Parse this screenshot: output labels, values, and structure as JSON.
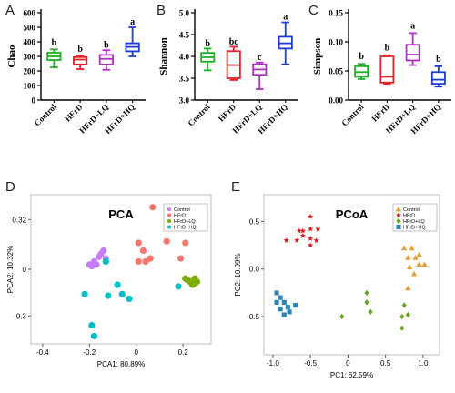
{
  "colors": {
    "control": "#1fb025",
    "hfrd": "#e8202a",
    "hfrd_lq": "#b02fc4",
    "hfrd_hq": "#1b3fd1",
    "pca_control": "#c77cff",
    "pca_hfrd": "#f8766d",
    "pca_lq": "#7cae00",
    "pca_hq": "#00bfc4",
    "pcoa_control": "#e6a032",
    "pcoa_hfrd": "#d7191c",
    "pcoa_lq": "#66a61e",
    "pcoa_hq": "#2b83ba"
  },
  "panels": {
    "A": "A",
    "B": "B",
    "C": "C",
    "D": "D",
    "E": "E"
  },
  "chart_data": [
    {
      "id": "A",
      "type": "box",
      "ylabel": "Chao",
      "categories": [
        "Control",
        "HFrD",
        "HFrD+LQ",
        "HFrD+HQ"
      ],
      "yticks": [
        "0",
        "100",
        "200",
        "300",
        "400",
        "500",
        "600"
      ],
      "ylim": [
        0,
        600
      ],
      "boxes": [
        {
          "min": 225,
          "q1": 275,
          "median": 300,
          "q3": 325,
          "max": 348
        },
        {
          "min": 212,
          "q1": 245,
          "median": 278,
          "q3": 295,
          "max": 305
        },
        {
          "min": 208,
          "q1": 245,
          "median": 283,
          "q3": 310,
          "max": 342
        },
        {
          "min": 300,
          "q1": 335,
          "median": 365,
          "q3": 390,
          "max": 500
        }
      ],
      "letters": [
        "b",
        "b",
        "b",
        "a"
      ],
      "letter_y": [
        375,
        330,
        358,
        520
      ]
    },
    {
      "id": "B",
      "type": "box",
      "ylabel": "Shannon",
      "categories": [
        "Control",
        "HFrD",
        "HFrD+LQ",
        "HFrD+HQ"
      ],
      "yticks": [
        "3.0",
        "3.5",
        "4.0",
        "4.5",
        "5.0"
      ],
      "ylim": [
        3.0,
        5.0
      ],
      "boxes": [
        {
          "min": 3.68,
          "q1": 3.88,
          "median": 3.98,
          "q3": 4.08,
          "max": 4.18
        },
        {
          "min": 3.46,
          "q1": 3.5,
          "median": 3.8,
          "q3": 4.12,
          "max": 4.22
        },
        {
          "min": 3.25,
          "q1": 3.58,
          "median": 3.7,
          "q3": 3.82,
          "max": 3.86
        },
        {
          "min": 3.82,
          "q1": 4.18,
          "median": 4.3,
          "q3": 4.45,
          "max": 4.78
        }
      ],
      "letters": [
        "b",
        "bc",
        "c",
        "a"
      ],
      "letter_y": [
        4.23,
        4.27,
        3.92,
        4.84
      ]
    },
    {
      "id": "C",
      "type": "box",
      "ylabel": "Simpson",
      "categories": [
        "Control",
        "HFrD",
        "HFrD+LQ",
        "HFrD+HQ"
      ],
      "yticks": [
        "0.00",
        "0.05",
        "0.10",
        "0.15"
      ],
      "ylim": [
        0,
        0.15
      ],
      "boxes": [
        {
          "min": 0.036,
          "q1": 0.04,
          "median": 0.048,
          "q3": 0.058,
          "max": 0.062
        },
        {
          "min": 0.028,
          "q1": 0.03,
          "median": 0.04,
          "q3": 0.075,
          "max": 0.077
        },
        {
          "min": 0.06,
          "q1": 0.068,
          "median": 0.078,
          "q3": 0.095,
          "max": 0.115
        },
        {
          "min": 0.023,
          "q1": 0.028,
          "median": 0.035,
          "q3": 0.048,
          "max": 0.058
        }
      ],
      "letters": [
        "b",
        "b",
        "a",
        "b"
      ],
      "letter_y": [
        0.07,
        0.085,
        0.123,
        0.066
      ]
    },
    {
      "id": "D",
      "type": "scatter",
      "title": "PCA",
      "xlabel": "PCA1: 80.89%",
      "ylabel": "PCA2: 10.32%",
      "xlim": [
        -0.45,
        0.32
      ],
      "ylim": [
        -0.48,
        0.48
      ],
      "xticks": [
        -0.4,
        -0.2,
        0,
        0.2
      ],
      "xtick_labels": [
        "-0.4",
        "-0.2",
        "0",
        "0.2"
      ],
      "yticks": [
        -0.3,
        0,
        0.32
      ],
      "ytick_labels": [
        "-0.3",
        "0",
        "0.32"
      ],
      "legend": {
        "position": "top-right",
        "entries": [
          "Control",
          "HFrD",
          "HFrD+LQ",
          "HFrD+HQ"
        ]
      },
      "series": [
        {
          "name": "Control",
          "points": [
            [
              -0.19,
              0.02
            ],
            [
              -0.17,
              0.03
            ],
            [
              -0.18,
              0.05
            ],
            [
              -0.16,
              0.08
            ],
            [
              -0.15,
              0.1
            ],
            [
              -0.14,
              0.12
            ],
            [
              -0.2,
              0.03
            ],
            [
              -0.13,
              0.07
            ]
          ]
        },
        {
          "name": "HFrD",
          "points": [
            [
              0.07,
              0.4
            ],
            [
              0.14,
              0.3
            ],
            [
              0.01,
              0.17
            ],
            [
              0.03,
              0.12
            ],
            [
              0.06,
              0.07
            ],
            [
              0.01,
              0.05
            ],
            [
              0.13,
              0.18
            ],
            [
              0.19,
              0.07
            ],
            [
              0.21,
              0.17
            ],
            [
              0.04,
              0.05
            ]
          ]
        },
        {
          "name": "HFrD+LQ",
          "points": [
            [
              0.21,
              -0.06
            ],
            [
              0.23,
              -0.08
            ],
            [
              0.25,
              -0.09
            ],
            [
              0.26,
              -0.08
            ],
            [
              0.24,
              -0.1
            ],
            [
              0.22,
              -0.07
            ],
            [
              0.25,
              -0.06
            ]
          ]
        },
        {
          "name": "HFrD+HQ",
          "points": [
            [
              -0.13,
              0.05
            ],
            [
              -0.08,
              -0.1
            ],
            [
              -0.12,
              -0.17
            ],
            [
              -0.06,
              -0.16
            ],
            [
              -0.22,
              -0.16
            ],
            [
              -0.19,
              -0.36
            ],
            [
              -0.18,
              -0.43
            ],
            [
              -0.03,
              -0.19
            ],
            [
              0.18,
              -0.11
            ]
          ]
        }
      ]
    },
    {
      "id": "E",
      "type": "scatter",
      "title": "PCoA",
      "xlabel": "PC1: 62.59%",
      "ylabel": "PC2: 10.99%",
      "xlim": [
        -1.12,
        1.22
      ],
      "ylim": [
        -0.9,
        0.78
      ],
      "xticks": [
        -1.0,
        -0.5,
        0,
        0.5,
        1.0
      ],
      "xtick_labels": [
        "-1.0",
        "-0.5",
        "0",
        "0.5",
        "1.0"
      ],
      "yticks": [
        -0.5,
        0,
        0.5
      ],
      "ytick_labels": [
        "-0.5",
        "0.0",
        "0.5"
      ],
      "legend": {
        "position": "top-right",
        "entries": [
          "Control",
          "HFrD",
          "HFrD+LQ",
          "HFrD+HQ"
        ]
      },
      "series": [
        {
          "name": "Control",
          "marker": "triangle",
          "points": [
            [
              0.75,
              0.22
            ],
            [
              0.85,
              0.22
            ],
            [
              0.8,
              0.12
            ],
            [
              0.9,
              0.12
            ],
            [
              0.95,
              0.15
            ],
            [
              0.82,
              0.02
            ],
            [
              0.95,
              0.05
            ],
            [
              0.88,
              -0.05
            ],
            [
              0.8,
              -0.2
            ],
            [
              1.02,
              0.05
            ]
          ]
        },
        {
          "name": "HFrD",
          "marker": "star",
          "points": [
            [
              -0.5,
              0.42
            ],
            [
              -0.6,
              0.4
            ],
            [
              -0.65,
              0.4
            ],
            [
              -0.6,
              0.35
            ],
            [
              -0.5,
              0.32
            ],
            [
              -0.68,
              0.3
            ],
            [
              -0.5,
              0.25
            ],
            [
              -0.4,
              0.42
            ],
            [
              -0.5,
              0.55
            ],
            [
              -0.42,
              0.3
            ],
            [
              -0.82,
              0.3
            ]
          ]
        },
        {
          "name": "HFrD+LQ",
          "marker": "diamond",
          "points": [
            [
              -0.08,
              -0.5
            ],
            [
              0.25,
              -0.35
            ],
            [
              0.3,
              -0.45
            ],
            [
              0.75,
              -0.38
            ],
            [
              0.72,
              -0.5
            ],
            [
              0.72,
              -0.62
            ],
            [
              0.25,
              -0.25
            ],
            [
              0.8,
              -0.48
            ]
          ]
        },
        {
          "name": "HFrD+HQ",
          "marker": "square",
          "points": [
            [
              -0.95,
              -0.25
            ],
            [
              -0.9,
              -0.3
            ],
            [
              -0.85,
              -0.35
            ],
            [
              -0.8,
              -0.4
            ],
            [
              -0.9,
              -0.42
            ],
            [
              -0.78,
              -0.45
            ],
            [
              -0.85,
              -0.48
            ],
            [
              -0.95,
              -0.35
            ],
            [
              -0.7,
              -0.38
            ]
          ]
        }
      ]
    }
  ]
}
